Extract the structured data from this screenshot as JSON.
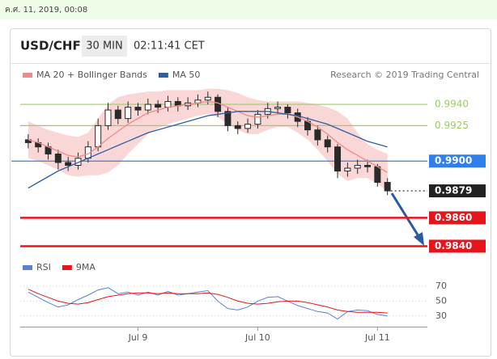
{
  "chart_data": [
    {
      "type": "candlestick",
      "timestamp": "ค.ศ. 11, 2019, 00:08",
      "title": "USD/CHF",
      "timeframe": "30 MIN",
      "time": "02:11:41 CET",
      "credit": "Research © 2019 Trading Central",
      "candle_color": "#2a2a2a",
      "open": [
        0.9915,
        0.9913,
        0.991,
        0.9905,
        0.9899,
        0.9897,
        0.9902,
        0.991,
        0.9925,
        0.9936,
        0.993,
        0.9938,
        0.9936,
        0.994,
        0.9938,
        0.9942,
        0.9939,
        0.9941,
        0.9943,
        0.9945,
        0.9935,
        0.9925,
        0.9923,
        0.9926,
        0.9933,
        0.9937,
        0.9938,
        0.9934,
        0.9928,
        0.9922,
        0.9915,
        0.991,
        0.9893,
        0.9895,
        0.9897,
        0.9896,
        0.9885
      ],
      "high": [
        0.9919,
        0.9916,
        0.9913,
        0.9908,
        0.9903,
        0.9906,
        0.9914,
        0.993,
        0.9941,
        0.9939,
        0.9942,
        0.9941,
        0.9944,
        0.9943,
        0.9946,
        0.9945,
        0.9945,
        0.9947,
        0.9949,
        0.9947,
        0.9938,
        0.9928,
        0.993,
        0.9936,
        0.9941,
        0.9942,
        0.994,
        0.9937,
        0.9931,
        0.9925,
        0.9918,
        0.9912,
        0.9899,
        0.9901,
        0.9901,
        0.9898,
        0.9888
      ],
      "low": [
        0.9909,
        0.9906,
        0.9901,
        0.9894,
        0.9893,
        0.9894,
        0.9899,
        0.9907,
        0.9922,
        0.9926,
        0.9927,
        0.9932,
        0.9933,
        0.9934,
        0.9935,
        0.9935,
        0.9936,
        0.9938,
        0.994,
        0.9931,
        0.9921,
        0.9919,
        0.992,
        0.9923,
        0.993,
        0.9933,
        0.993,
        0.9924,
        0.9918,
        0.9911,
        0.9906,
        0.9888,
        0.9889,
        0.9891,
        0.9892,
        0.9882,
        0.9876
      ],
      "close": [
        0.9913,
        0.991,
        0.9905,
        0.9899,
        0.9897,
        0.9902,
        0.991,
        0.9925,
        0.9936,
        0.993,
        0.9938,
        0.9936,
        0.994,
        0.9938,
        0.9942,
        0.9939,
        0.9941,
        0.9943,
        0.9945,
        0.9935,
        0.9925,
        0.9923,
        0.9926,
        0.9933,
        0.9937,
        0.9938,
        0.9934,
        0.9928,
        0.9922,
        0.9915,
        0.991,
        0.9893,
        0.9895,
        0.9897,
        0.9896,
        0.9885,
        0.9879
      ],
      "series": [
        {
          "name": "MA 20 + Bollinger Bands",
          "color": "#f08a8a",
          "band_color": "#f7c6c6",
          "values": [
            0.9915,
            0.9913,
            0.991,
            0.9907,
            0.9904,
            0.9903,
            0.9905,
            0.991,
            0.9916,
            0.9921,
            0.9926,
            0.993,
            0.9934,
            0.9936,
            0.9938,
            0.9939,
            0.994,
            0.9941,
            0.9942,
            0.9941,
            0.9938,
            0.9935,
            0.9932,
            0.9931,
            0.9932,
            0.9933,
            0.9933,
            0.9931,
            0.9928,
            0.9924,
            0.9919,
            0.9913,
            0.9908,
            0.9904,
            0.99,
            0.9896,
            0.9892
          ],
          "upper": [
            0.9928,
            0.9925,
            0.9922,
            0.992,
            0.9918,
            0.9917,
            0.992,
            0.993,
            0.994,
            0.9945,
            0.9947,
            0.9948,
            0.9949,
            0.9949,
            0.995,
            0.995,
            0.995,
            0.995,
            0.9951,
            0.9951,
            0.995,
            0.9948,
            0.9945,
            0.9943,
            0.9942,
            0.9942,
            0.9942,
            0.9942,
            0.9941,
            0.994,
            0.9938,
            0.9935,
            0.993,
            0.992,
            0.9912,
            0.9908,
            0.9905
          ],
          "lower": [
            0.9902,
            0.99,
            0.9897,
            0.9894,
            0.989,
            0.9889,
            0.989,
            0.989,
            0.9892,
            0.9897,
            0.9905,
            0.9912,
            0.9919,
            0.9923,
            0.9926,
            0.9928,
            0.993,
            0.9932,
            0.9933,
            0.9931,
            0.9926,
            0.9922,
            0.9919,
            0.9919,
            0.9922,
            0.9924,
            0.9924,
            0.992,
            0.9915,
            0.9908,
            0.99,
            0.9891,
            0.9886,
            0.9888,
            0.9888,
            0.9884,
            0.9879
          ]
        },
        {
          "name": "MA 50",
          "color": "#2f5f9f",
          "values": [
            0.9881,
            0.9885,
            0.9889,
            0.9893,
            0.9896,
            0.9899,
            0.9902,
            0.9905,
            0.9908,
            0.9911,
            0.9914,
            0.9917,
            0.992,
            0.9922,
            0.9924,
            0.9926,
            0.9928,
            0.993,
            0.9932,
            0.9933,
            0.9934,
            0.9935,
            0.9935,
            0.9935,
            0.9935,
            0.9934,
            0.9933,
            0.9932,
            0.993,
            0.9928,
            0.9926,
            0.9923,
            0.992,
            0.9917,
            0.9914,
            0.9912,
            0.991
          ]
        }
      ],
      "levels": [
        {
          "value": 0.994,
          "label": "0.9940",
          "color": "#9ccc65",
          "style": "line"
        },
        {
          "value": 0.9925,
          "label": "0.9925",
          "color": "#9ccc65",
          "style": "line"
        },
        {
          "value": 0.99,
          "label": "0.9900",
          "color": "#2f80ed",
          "style": "box"
        },
        {
          "value": 0.9879,
          "label": "0.9879",
          "color": "#222222",
          "style": "dotted"
        },
        {
          "value": 0.986,
          "label": "0.9860",
          "color": "#e8141b",
          "style": "bold"
        },
        {
          "value": 0.984,
          "label": "0.9840",
          "color": "#e8141b",
          "style": "bold"
        }
      ],
      "xlim": [
        -0.8,
        40
      ],
      "ylim": [
        0.9834,
        0.9952
      ]
    },
    {
      "type": "line",
      "series": [
        {
          "name": "RSI",
          "color": "#5b7fd6",
          "values": [
            62,
            55,
            48,
            42,
            45,
            52,
            58,
            65,
            68,
            60,
            62,
            58,
            62,
            58,
            63,
            58,
            60,
            62,
            64,
            50,
            40,
            38,
            42,
            50,
            55,
            56,
            50,
            44,
            40,
            36,
            34,
            26,
            36,
            38,
            37,
            32,
            30
          ]
        },
        {
          "name": "9MA",
          "color": "#e8141b",
          "values": [
            66,
            60,
            55,
            50,
            47,
            46,
            48,
            52,
            56,
            58,
            60,
            61,
            61,
            60,
            61,
            60,
            60,
            60,
            61,
            59,
            55,
            50,
            47,
            46,
            47,
            49,
            50,
            50,
            48,
            45,
            42,
            38,
            36,
            35,
            35,
            35,
            34
          ]
        }
      ],
      "xlim": [
        -0.8,
        40
      ],
      "ylim": [
        20,
        83
      ],
      "yticks": [
        30,
        50,
        70
      ],
      "grid": true,
      "xticks": [
        {
          "value": 11,
          "label": "Jul 9"
        },
        {
          "value": 23,
          "label": "Jul 10"
        },
        {
          "value": 35,
          "label": "Jul 11"
        }
      ]
    }
  ]
}
